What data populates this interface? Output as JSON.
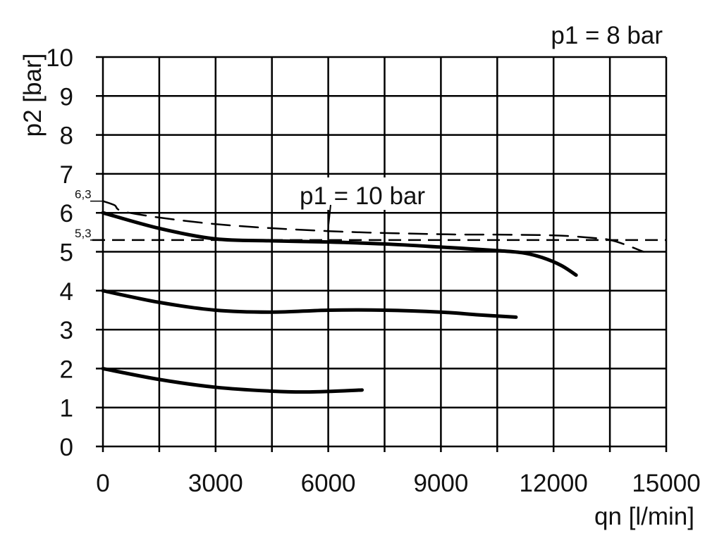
{
  "chart_data": {
    "type": "line",
    "title": "",
    "annotation_top_right": "p1 = 8 bar",
    "xlabel": "qn [l/min]",
    "ylabel": "p2 [bar]",
    "xlim": [
      0,
      15000
    ],
    "ylim": [
      0,
      10
    ],
    "xticks": [
      0,
      3000,
      6000,
      9000,
      12000,
      15000
    ],
    "yticks": [
      0,
      1,
      2,
      3,
      4,
      5,
      6,
      7,
      8,
      9,
      10
    ],
    "x_grid_step": 1500,
    "grid": true,
    "reference_labels": [
      {
        "text": "6,3",
        "y": 6.3
      },
      {
        "text": "5,3",
        "y": 5.3
      }
    ],
    "reference_line": {
      "y": 5.3,
      "style": "dashed"
    },
    "series": [
      {
        "style": "solid",
        "x": [
          0,
          1500,
          3000,
          4500,
          6000,
          7500,
          9000,
          10500,
          11200,
          11700,
          12200,
          12600
        ],
        "y": [
          6.0,
          5.6,
          5.33,
          5.28,
          5.25,
          5.2,
          5.12,
          5.03,
          4.97,
          4.85,
          4.65,
          4.4
        ]
      },
      {
        "style": "solid",
        "x": [
          0,
          1500,
          3000,
          4500,
          6000,
          7500,
          9000,
          10000,
          11000
        ],
        "y": [
          4.0,
          3.7,
          3.5,
          3.45,
          3.5,
          3.5,
          3.45,
          3.38,
          3.32
        ]
      },
      {
        "style": "solid",
        "x": [
          0,
          1500,
          3000,
          4500,
          5500,
          6900
        ],
        "y": [
          2.0,
          1.72,
          1.52,
          1.42,
          1.4,
          1.45
        ]
      },
      {
        "name": "p1 = 10 bar",
        "style": "dashed",
        "x": [
          0,
          300,
          700,
          3000,
          6000,
          9000,
          10500,
          12000,
          13000,
          13600,
          14400
        ],
        "y": [
          6.3,
          6.2,
          6.0,
          5.71,
          5.53,
          5.45,
          5.44,
          5.42,
          5.36,
          5.28,
          5.0
        ]
      }
    ]
  }
}
